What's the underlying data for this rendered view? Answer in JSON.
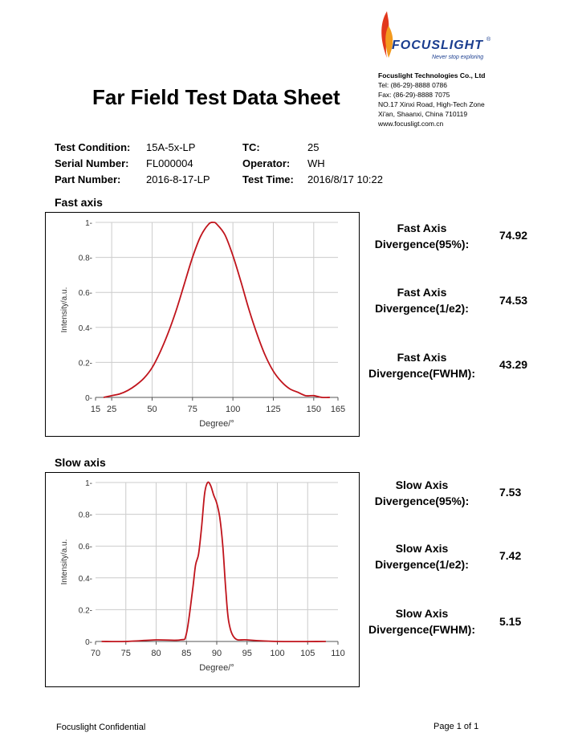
{
  "header": {
    "logo_text": "FOCUSLIGHT",
    "logo_registered": "®",
    "logo_tagline": "Never stop exploring",
    "company": "Focuslight Technologies Co., Ltd",
    "tel": "Tel:  (86-29)-8888  0786",
    "fax": "Fax: (86-29)-8888  7075",
    "address_line1": "NO.17 Xinxi Road, High-Tech Zone",
    "address_line2": "Xi'an, Shaanxi, China 710119",
    "website": "www.focusligt.com.cn"
  },
  "title": "Far Field Test Data Sheet",
  "test_info": {
    "test_condition_label": "Test Condition:",
    "test_condition_value": "15A-5x-LP",
    "serial_number_label": "Serial Number:",
    "serial_number_value": "FL000004",
    "part_number_label": "Part Number:",
    "part_number_value": "2016-8-17-LP",
    "tc_label": "TC:",
    "tc_value": "25",
    "operator_label": "Operator:",
    "operator_value": "WH",
    "test_time_label": "Test Time:",
    "test_time_value": "2016/8/17 10:22"
  },
  "fast_axis": {
    "section_title": "Fast axis",
    "metrics": [
      {
        "line1": "Fast Axis",
        "line2": "Divergence(95%):",
        "value": "74.92"
      },
      {
        "line1": "Fast Axis",
        "line2": "Divergence(1/e2):",
        "value": "74.53"
      },
      {
        "line1": "Fast Axis",
        "line2": "Divergence(FWHM):",
        "value": "43.29"
      }
    ]
  },
  "slow_axis": {
    "section_title": "Slow axis",
    "metrics": [
      {
        "line1": "Slow Axis",
        "line2": "Divergence(95%):",
        "value": "7.53"
      },
      {
        "line1": "Slow Axis",
        "line2": "Divergence(1/e2):",
        "value": "7.42"
      },
      {
        "line1": "Slow Axis",
        "line2": "Divergence(FWHM):",
        "value": "5.15"
      }
    ]
  },
  "footer": {
    "left": "Focuslight Confidential",
    "right": "Page 1 of 1"
  },
  "colors": {
    "curve": "#c0141c",
    "grid": "#cccccc",
    "axis": "#555555",
    "brand_blue": "#1a3d8f",
    "flame_orange": "#f39a1e",
    "flame_red": "#e2371b"
  },
  "chart_data": [
    {
      "type": "line",
      "title": "Fast axis",
      "xlabel": "Degree/°",
      "ylabel": "Intensity/a.u.",
      "xlim": [
        15,
        165
      ],
      "ylim": [
        0,
        1
      ],
      "x_ticks": [
        15,
        25,
        50,
        75,
        100,
        125,
        150,
        165
      ],
      "x_tick_labels": [
        "15",
        "25",
        "50",
        "75",
        "100",
        "125",
        "150",
        "165"
      ],
      "y_ticks": [
        0,
        0.2,
        0.4,
        0.6,
        0.8,
        1
      ],
      "y_tick_labels": [
        "0-",
        "0.2-",
        "0.4-",
        "0.6-",
        "0.8-",
        "1-"
      ],
      "grid": true,
      "series": [
        {
          "x": [
            20,
            25,
            30,
            35,
            40,
            45,
            50,
            55,
            60,
            65,
            70,
            75,
            80,
            85,
            88,
            90,
            95,
            100,
            105,
            110,
            115,
            120,
            125,
            130,
            135,
            140,
            145,
            150,
            155,
            160
          ],
          "values": [
            0.0,
            0.01,
            0.02,
            0.04,
            0.07,
            0.11,
            0.17,
            0.26,
            0.37,
            0.5,
            0.65,
            0.8,
            0.92,
            0.99,
            1.0,
            0.99,
            0.93,
            0.81,
            0.66,
            0.5,
            0.36,
            0.24,
            0.15,
            0.09,
            0.05,
            0.03,
            0.01,
            0.01,
            0.0,
            0.0
          ]
        }
      ]
    },
    {
      "type": "line",
      "title": "Slow axis",
      "xlabel": "Degree/°",
      "ylabel": "Intensity/a.u.",
      "xlim": [
        70,
        110
      ],
      "ylim": [
        0,
        1
      ],
      "x_ticks": [
        70,
        75,
        80,
        85,
        90,
        95,
        100,
        105,
        110
      ],
      "x_tick_labels": [
        "70",
        "75",
        "80",
        "85",
        "90",
        "95",
        "100",
        "105",
        "110"
      ],
      "y_ticks": [
        0,
        0.2,
        0.4,
        0.6,
        0.8,
        1
      ],
      "y_tick_labels": [
        "0-",
        "0.2-",
        "0.4-",
        "0.6-",
        "0.8-",
        "1-"
      ],
      "grid": true,
      "series": [
        {
          "x": [
            71,
            75,
            80,
            84,
            85,
            86,
            86.5,
            87,
            87.5,
            88,
            88.5,
            89,
            89.5,
            90,
            90.5,
            91,
            91.5,
            92,
            93,
            95,
            100,
            108
          ],
          "values": [
            0.0,
            0.0,
            0.01,
            0.01,
            0.05,
            0.32,
            0.48,
            0.55,
            0.72,
            0.93,
            1.0,
            0.98,
            0.92,
            0.87,
            0.78,
            0.6,
            0.32,
            0.12,
            0.02,
            0.01,
            0.0,
            0.0
          ]
        }
      ]
    }
  ]
}
